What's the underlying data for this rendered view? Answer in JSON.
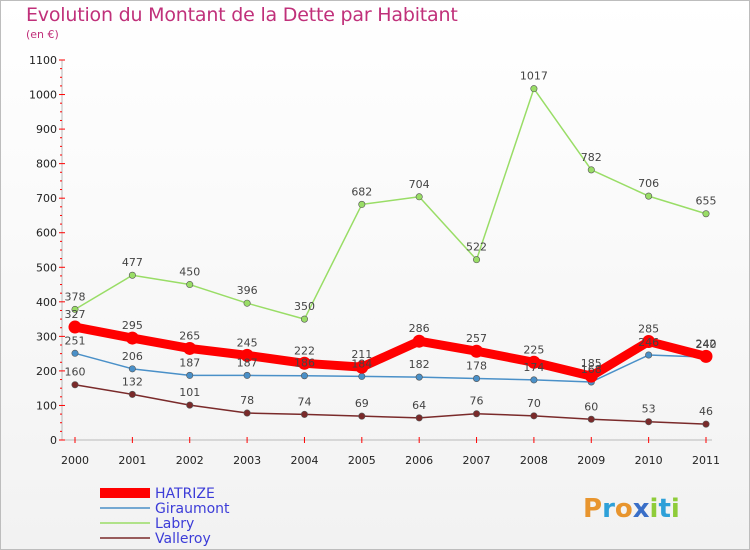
{
  "chart_data": {
    "type": "line",
    "title": "Evolution du Montant de la Dette par Habitant",
    "subtitle": "(en €)",
    "x": [
      "2000",
      "2001",
      "2002",
      "2003",
      "2004",
      "2005",
      "2006",
      "2007",
      "2008",
      "2009",
      "2010",
      "2011"
    ],
    "ylim": [
      0,
      1100
    ],
    "yticks": [
      0,
      100,
      200,
      300,
      400,
      500,
      600,
      700,
      800,
      900,
      1000,
      1100
    ],
    "grid": false,
    "legend_position": "bottom-left",
    "series": [
      {
        "name": "HATRIZE",
        "color": "#ff0000",
        "values": [
          327,
          295,
          265,
          245,
          222,
          211,
          286,
          257,
          225,
          185,
          285,
          242
        ]
      },
      {
        "name": "Giraumont",
        "color": "#4a90c8",
        "values": [
          251,
          206,
          187,
          187,
          186,
          184,
          182,
          178,
          174,
          168,
          246,
          240
        ]
      },
      {
        "name": "Labry",
        "color": "#99dd66",
        "values": [
          378,
          477,
          450,
          396,
          350,
          682,
          704,
          522,
          1017,
          782,
          706,
          655
        ]
      },
      {
        "name": "Valleroy",
        "color": "#7a2a2a",
        "values": [
          160,
          132,
          101,
          78,
          74,
          69,
          64,
          76,
          70,
          60,
          53,
          46
        ]
      }
    ]
  },
  "brand": {
    "logo_text": "Proxiti"
  }
}
